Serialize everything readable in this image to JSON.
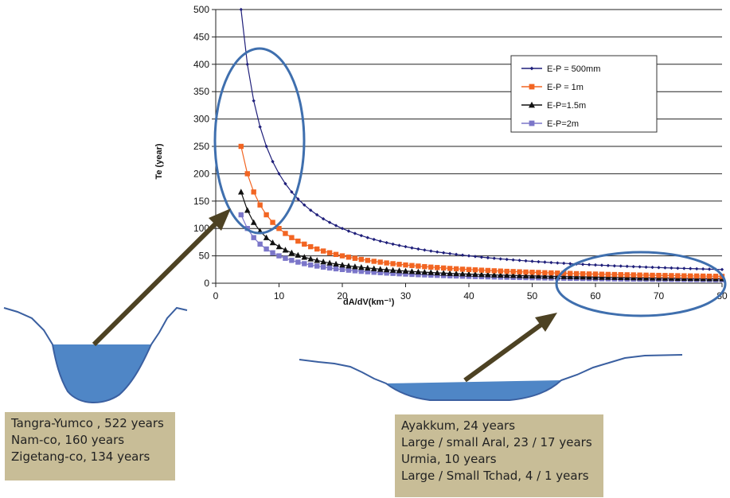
{
  "chart_data": {
    "type": "line",
    "xlabel": "dA/dV(km⁻¹)",
    "ylabel": "Te (year)",
    "xlim": [
      0,
      80
    ],
    "ylim": [
      0,
      500
    ],
    "xticks": [
      "0",
      "10",
      "20",
      "30",
      "40",
      "50",
      "60",
      "70",
      "80"
    ],
    "yticks": [
      "0",
      "50",
      "100",
      "150",
      "200",
      "250",
      "300",
      "350",
      "400",
      "450",
      "500"
    ],
    "grid": "horizontal",
    "legend_position": "top-right",
    "x": [
      4,
      5,
      6,
      7,
      8,
      9,
      10,
      11,
      12,
      13,
      14,
      15,
      16,
      17,
      18,
      19,
      20,
      21,
      22,
      23,
      24,
      25,
      26,
      27,
      28,
      29,
      30,
      31,
      32,
      33,
      34,
      35,
      36,
      37,
      38,
      39,
      40,
      41,
      42,
      43,
      44,
      45,
      46,
      47,
      48,
      49,
      50,
      51,
      52,
      53,
      54,
      55,
      56,
      57,
      58,
      59,
      60,
      61,
      62,
      63,
      64,
      65,
      66,
      67,
      68,
      69,
      70,
      71,
      72,
      73,
      74,
      75,
      76,
      77,
      78,
      79,
      80
    ],
    "series": [
      {
        "name": "E-P = 500mm",
        "color": "#1f1f7a",
        "marker": "diamond",
        "values": [
          500.0,
          400.0,
          333.3,
          285.7,
          250.0,
          222.2,
          200.0,
          181.8,
          166.7,
          153.8,
          142.9,
          133.3,
          125.0,
          117.6,
          111.1,
          105.3,
          100.0,
          95.2,
          90.9,
          87.0,
          83.3,
          80.0,
          76.9,
          74.1,
          71.4,
          69.0,
          66.7,
          64.5,
          62.5,
          60.6,
          58.8,
          57.1,
          55.6,
          54.1,
          52.6,
          51.3,
          50.0,
          48.8,
          47.6,
          46.5,
          45.5,
          44.4,
          43.5,
          42.6,
          41.7,
          40.8,
          40.0,
          39.2,
          38.5,
          37.7,
          37.0,
          36.4,
          35.7,
          35.1,
          34.5,
          33.9,
          33.3,
          32.8,
          32.3,
          31.7,
          31.3,
          30.8,
          30.3,
          29.9,
          29.4,
          29.0,
          28.6,
          28.2,
          27.8,
          27.4,
          27.0,
          26.7,
          26.3,
          26.0,
          25.6,
          25.3,
          25.0
        ]
      },
      {
        "name": "E-P = 1m",
        "color": "#f26522",
        "marker": "square",
        "values": [
          250.0,
          200.0,
          166.7,
          142.9,
          125.0,
          111.1,
          100.0,
          90.9,
          83.3,
          76.9,
          71.4,
          66.7,
          62.5,
          58.8,
          55.6,
          52.6,
          50.0,
          47.6,
          45.5,
          43.5,
          41.7,
          40.0,
          38.5,
          37.0,
          35.7,
          34.5,
          33.3,
          32.3,
          31.3,
          30.3,
          29.4,
          28.6,
          27.8,
          27.0,
          26.3,
          25.6,
          25.0,
          24.4,
          23.8,
          23.3,
          22.7,
          22.2,
          21.7,
          21.3,
          20.8,
          20.4,
          20.0,
          19.6,
          19.2,
          18.9,
          18.5,
          18.2,
          17.9,
          17.5,
          17.2,
          16.9,
          16.7,
          16.4,
          16.1,
          15.9,
          15.6,
          15.4,
          15.2,
          14.9,
          14.7,
          14.5,
          14.3,
          14.1,
          13.9,
          13.7,
          13.5,
          13.3,
          13.2,
          13.0,
          12.8,
          12.7,
          12.5
        ]
      },
      {
        "name": "E-P=1.5m",
        "color": "#111111",
        "marker": "triangle",
        "values": [
          166.7,
          133.3,
          111.1,
          95.2,
          83.3,
          74.1,
          66.7,
          60.6,
          55.6,
          51.3,
          47.6,
          44.4,
          41.7,
          39.2,
          37.0,
          35.1,
          33.3,
          31.7,
          30.3,
          29.0,
          27.8,
          26.7,
          25.6,
          24.7,
          23.8,
          23.0,
          22.2,
          21.5,
          20.8,
          20.2,
          19.6,
          19.0,
          18.5,
          18.0,
          17.5,
          17.1,
          16.7,
          16.3,
          15.9,
          15.5,
          15.2,
          14.8,
          14.5,
          14.2,
          13.9,
          13.6,
          13.3,
          13.1,
          12.8,
          12.6,
          12.3,
          12.1,
          11.9,
          11.7,
          11.5,
          11.3,
          11.1,
          10.9,
          10.8,
          10.6,
          10.4,
          10.3,
          10.1,
          10.0,
          9.8,
          9.7,
          9.5,
          9.4,
          9.3,
          9.1,
          9.0,
          8.9,
          8.8,
          8.7,
          8.5,
          8.4,
          8.3
        ]
      },
      {
        "name": "E-P=2m",
        "color": "#7b76c9",
        "marker": "square",
        "values": [
          125.0,
          100.0,
          83.3,
          71.4,
          62.5,
          55.6,
          50.0,
          45.5,
          41.7,
          38.5,
          35.7,
          33.3,
          31.3,
          29.4,
          27.8,
          26.3,
          25.0,
          23.8,
          22.7,
          21.7,
          20.8,
          20.0,
          19.2,
          18.5,
          17.9,
          17.2,
          16.7,
          16.1,
          15.6,
          15.2,
          14.7,
          14.3,
          13.9,
          13.5,
          13.2,
          12.8,
          12.5,
          12.2,
          11.9,
          11.6,
          11.4,
          11.1,
          10.9,
          10.6,
          10.4,
          10.2,
          10.0,
          9.8,
          9.6,
          9.4,
          9.3,
          9.1,
          8.9,
          8.8,
          8.6,
          8.5,
          8.3,
          8.2,
          8.1,
          7.9,
          7.8,
          7.7,
          7.6,
          7.5,
          7.4,
          7.2,
          7.1,
          7.0,
          6.9,
          6.8,
          6.8,
          6.7,
          6.6,
          6.5,
          6.4,
          6.3,
          6.3
        ]
      }
    ]
  },
  "colors": {
    "highlight": "#3f6fae",
    "arrow": "#4d4223",
    "water": "#4f86c6",
    "terrain": "#3a5fa0"
  },
  "annotations": {
    "left_box": {
      "lines": [
        "Tangra-Yumco , 522 years",
        "Nam-co, 160 years",
        "Zigetang-co, 134 years"
      ]
    },
    "right_box": {
      "lines": [
        "Ayakkum, 24 years",
        "Large / small Aral, 23 / 17 years",
        "Urmia, 10 years",
        "Large / Small Tchad, 4 / 1 years"
      ]
    }
  }
}
